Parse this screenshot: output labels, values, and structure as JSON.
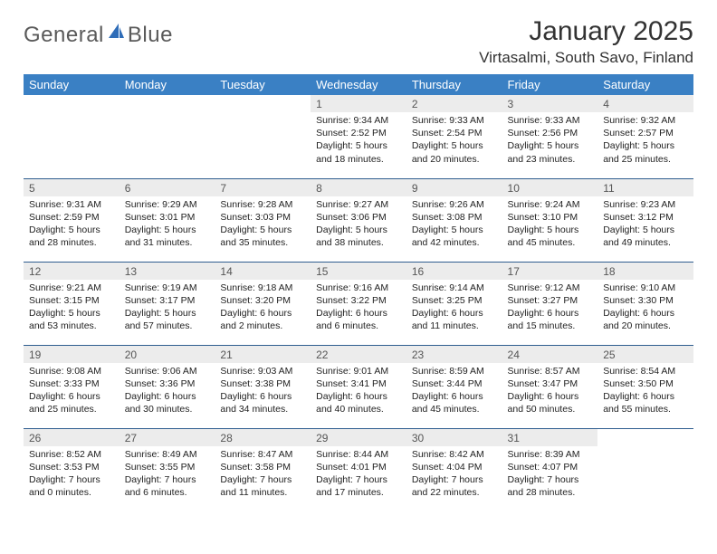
{
  "brand": {
    "name_a": "General",
    "name_b": "Blue"
  },
  "header": {
    "title": "January 2025",
    "location": "Virtasalmi, South Savo, Finland"
  },
  "colors": {
    "header_bg": "#3a80c4",
    "header_fg": "#ffffff",
    "daynum_bg": "#ececec",
    "rule": "#2f5e8f",
    "text": "#222222",
    "brand_text": "#5a5a5a",
    "brand_accent": "#2f6db8"
  },
  "columns": [
    "Sunday",
    "Monday",
    "Tuesday",
    "Wednesday",
    "Thursday",
    "Friday",
    "Saturday"
  ],
  "weeks": [
    [
      {
        "empty": true
      },
      {
        "empty": true
      },
      {
        "empty": true
      },
      {
        "n": "1",
        "sunrise": "9:34 AM",
        "sunset": "2:52 PM",
        "dl_h": "5",
        "dl_m": "18"
      },
      {
        "n": "2",
        "sunrise": "9:33 AM",
        "sunset": "2:54 PM",
        "dl_h": "5",
        "dl_m": "20"
      },
      {
        "n": "3",
        "sunrise": "9:33 AM",
        "sunset": "2:56 PM",
        "dl_h": "5",
        "dl_m": "23"
      },
      {
        "n": "4",
        "sunrise": "9:32 AM",
        "sunset": "2:57 PM",
        "dl_h": "5",
        "dl_m": "25"
      }
    ],
    [
      {
        "n": "5",
        "sunrise": "9:31 AM",
        "sunset": "2:59 PM",
        "dl_h": "5",
        "dl_m": "28"
      },
      {
        "n": "6",
        "sunrise": "9:29 AM",
        "sunset": "3:01 PM",
        "dl_h": "5",
        "dl_m": "31"
      },
      {
        "n": "7",
        "sunrise": "9:28 AM",
        "sunset": "3:03 PM",
        "dl_h": "5",
        "dl_m": "35"
      },
      {
        "n": "8",
        "sunrise": "9:27 AM",
        "sunset": "3:06 PM",
        "dl_h": "5",
        "dl_m": "38"
      },
      {
        "n": "9",
        "sunrise": "9:26 AM",
        "sunset": "3:08 PM",
        "dl_h": "5",
        "dl_m": "42"
      },
      {
        "n": "10",
        "sunrise": "9:24 AM",
        "sunset": "3:10 PM",
        "dl_h": "5",
        "dl_m": "45"
      },
      {
        "n": "11",
        "sunrise": "9:23 AM",
        "sunset": "3:12 PM",
        "dl_h": "5",
        "dl_m": "49"
      }
    ],
    [
      {
        "n": "12",
        "sunrise": "9:21 AM",
        "sunset": "3:15 PM",
        "dl_h": "5",
        "dl_m": "53"
      },
      {
        "n": "13",
        "sunrise": "9:19 AM",
        "sunset": "3:17 PM",
        "dl_h": "5",
        "dl_m": "57"
      },
      {
        "n": "14",
        "sunrise": "9:18 AM",
        "sunset": "3:20 PM",
        "dl_h": "6",
        "dl_m": "2"
      },
      {
        "n": "15",
        "sunrise": "9:16 AM",
        "sunset": "3:22 PM",
        "dl_h": "6",
        "dl_m": "6"
      },
      {
        "n": "16",
        "sunrise": "9:14 AM",
        "sunset": "3:25 PM",
        "dl_h": "6",
        "dl_m": "11"
      },
      {
        "n": "17",
        "sunrise": "9:12 AM",
        "sunset": "3:27 PM",
        "dl_h": "6",
        "dl_m": "15"
      },
      {
        "n": "18",
        "sunrise": "9:10 AM",
        "sunset": "3:30 PM",
        "dl_h": "6",
        "dl_m": "20"
      }
    ],
    [
      {
        "n": "19",
        "sunrise": "9:08 AM",
        "sunset": "3:33 PM",
        "dl_h": "6",
        "dl_m": "25"
      },
      {
        "n": "20",
        "sunrise": "9:06 AM",
        "sunset": "3:36 PM",
        "dl_h": "6",
        "dl_m": "30"
      },
      {
        "n": "21",
        "sunrise": "9:03 AM",
        "sunset": "3:38 PM",
        "dl_h": "6",
        "dl_m": "34"
      },
      {
        "n": "22",
        "sunrise": "9:01 AM",
        "sunset": "3:41 PM",
        "dl_h": "6",
        "dl_m": "40"
      },
      {
        "n": "23",
        "sunrise": "8:59 AM",
        "sunset": "3:44 PM",
        "dl_h": "6",
        "dl_m": "45"
      },
      {
        "n": "24",
        "sunrise": "8:57 AM",
        "sunset": "3:47 PM",
        "dl_h": "6",
        "dl_m": "50"
      },
      {
        "n": "25",
        "sunrise": "8:54 AM",
        "sunset": "3:50 PM",
        "dl_h": "6",
        "dl_m": "55"
      }
    ],
    [
      {
        "n": "26",
        "sunrise": "8:52 AM",
        "sunset": "3:53 PM",
        "dl_h": "7",
        "dl_m": "0"
      },
      {
        "n": "27",
        "sunrise": "8:49 AM",
        "sunset": "3:55 PM",
        "dl_h": "7",
        "dl_m": "6"
      },
      {
        "n": "28",
        "sunrise": "8:47 AM",
        "sunset": "3:58 PM",
        "dl_h": "7",
        "dl_m": "11"
      },
      {
        "n": "29",
        "sunrise": "8:44 AM",
        "sunset": "4:01 PM",
        "dl_h": "7",
        "dl_m": "17"
      },
      {
        "n": "30",
        "sunrise": "8:42 AM",
        "sunset": "4:04 PM",
        "dl_h": "7",
        "dl_m": "22"
      },
      {
        "n": "31",
        "sunrise": "8:39 AM",
        "sunset": "4:07 PM",
        "dl_h": "7",
        "dl_m": "28"
      },
      {
        "empty": true
      }
    ]
  ],
  "labels": {
    "sunrise": "Sunrise:",
    "sunset": "Sunset:",
    "daylight": "Daylight:",
    "hours": "hours",
    "and": "and",
    "minutes": "minutes."
  }
}
